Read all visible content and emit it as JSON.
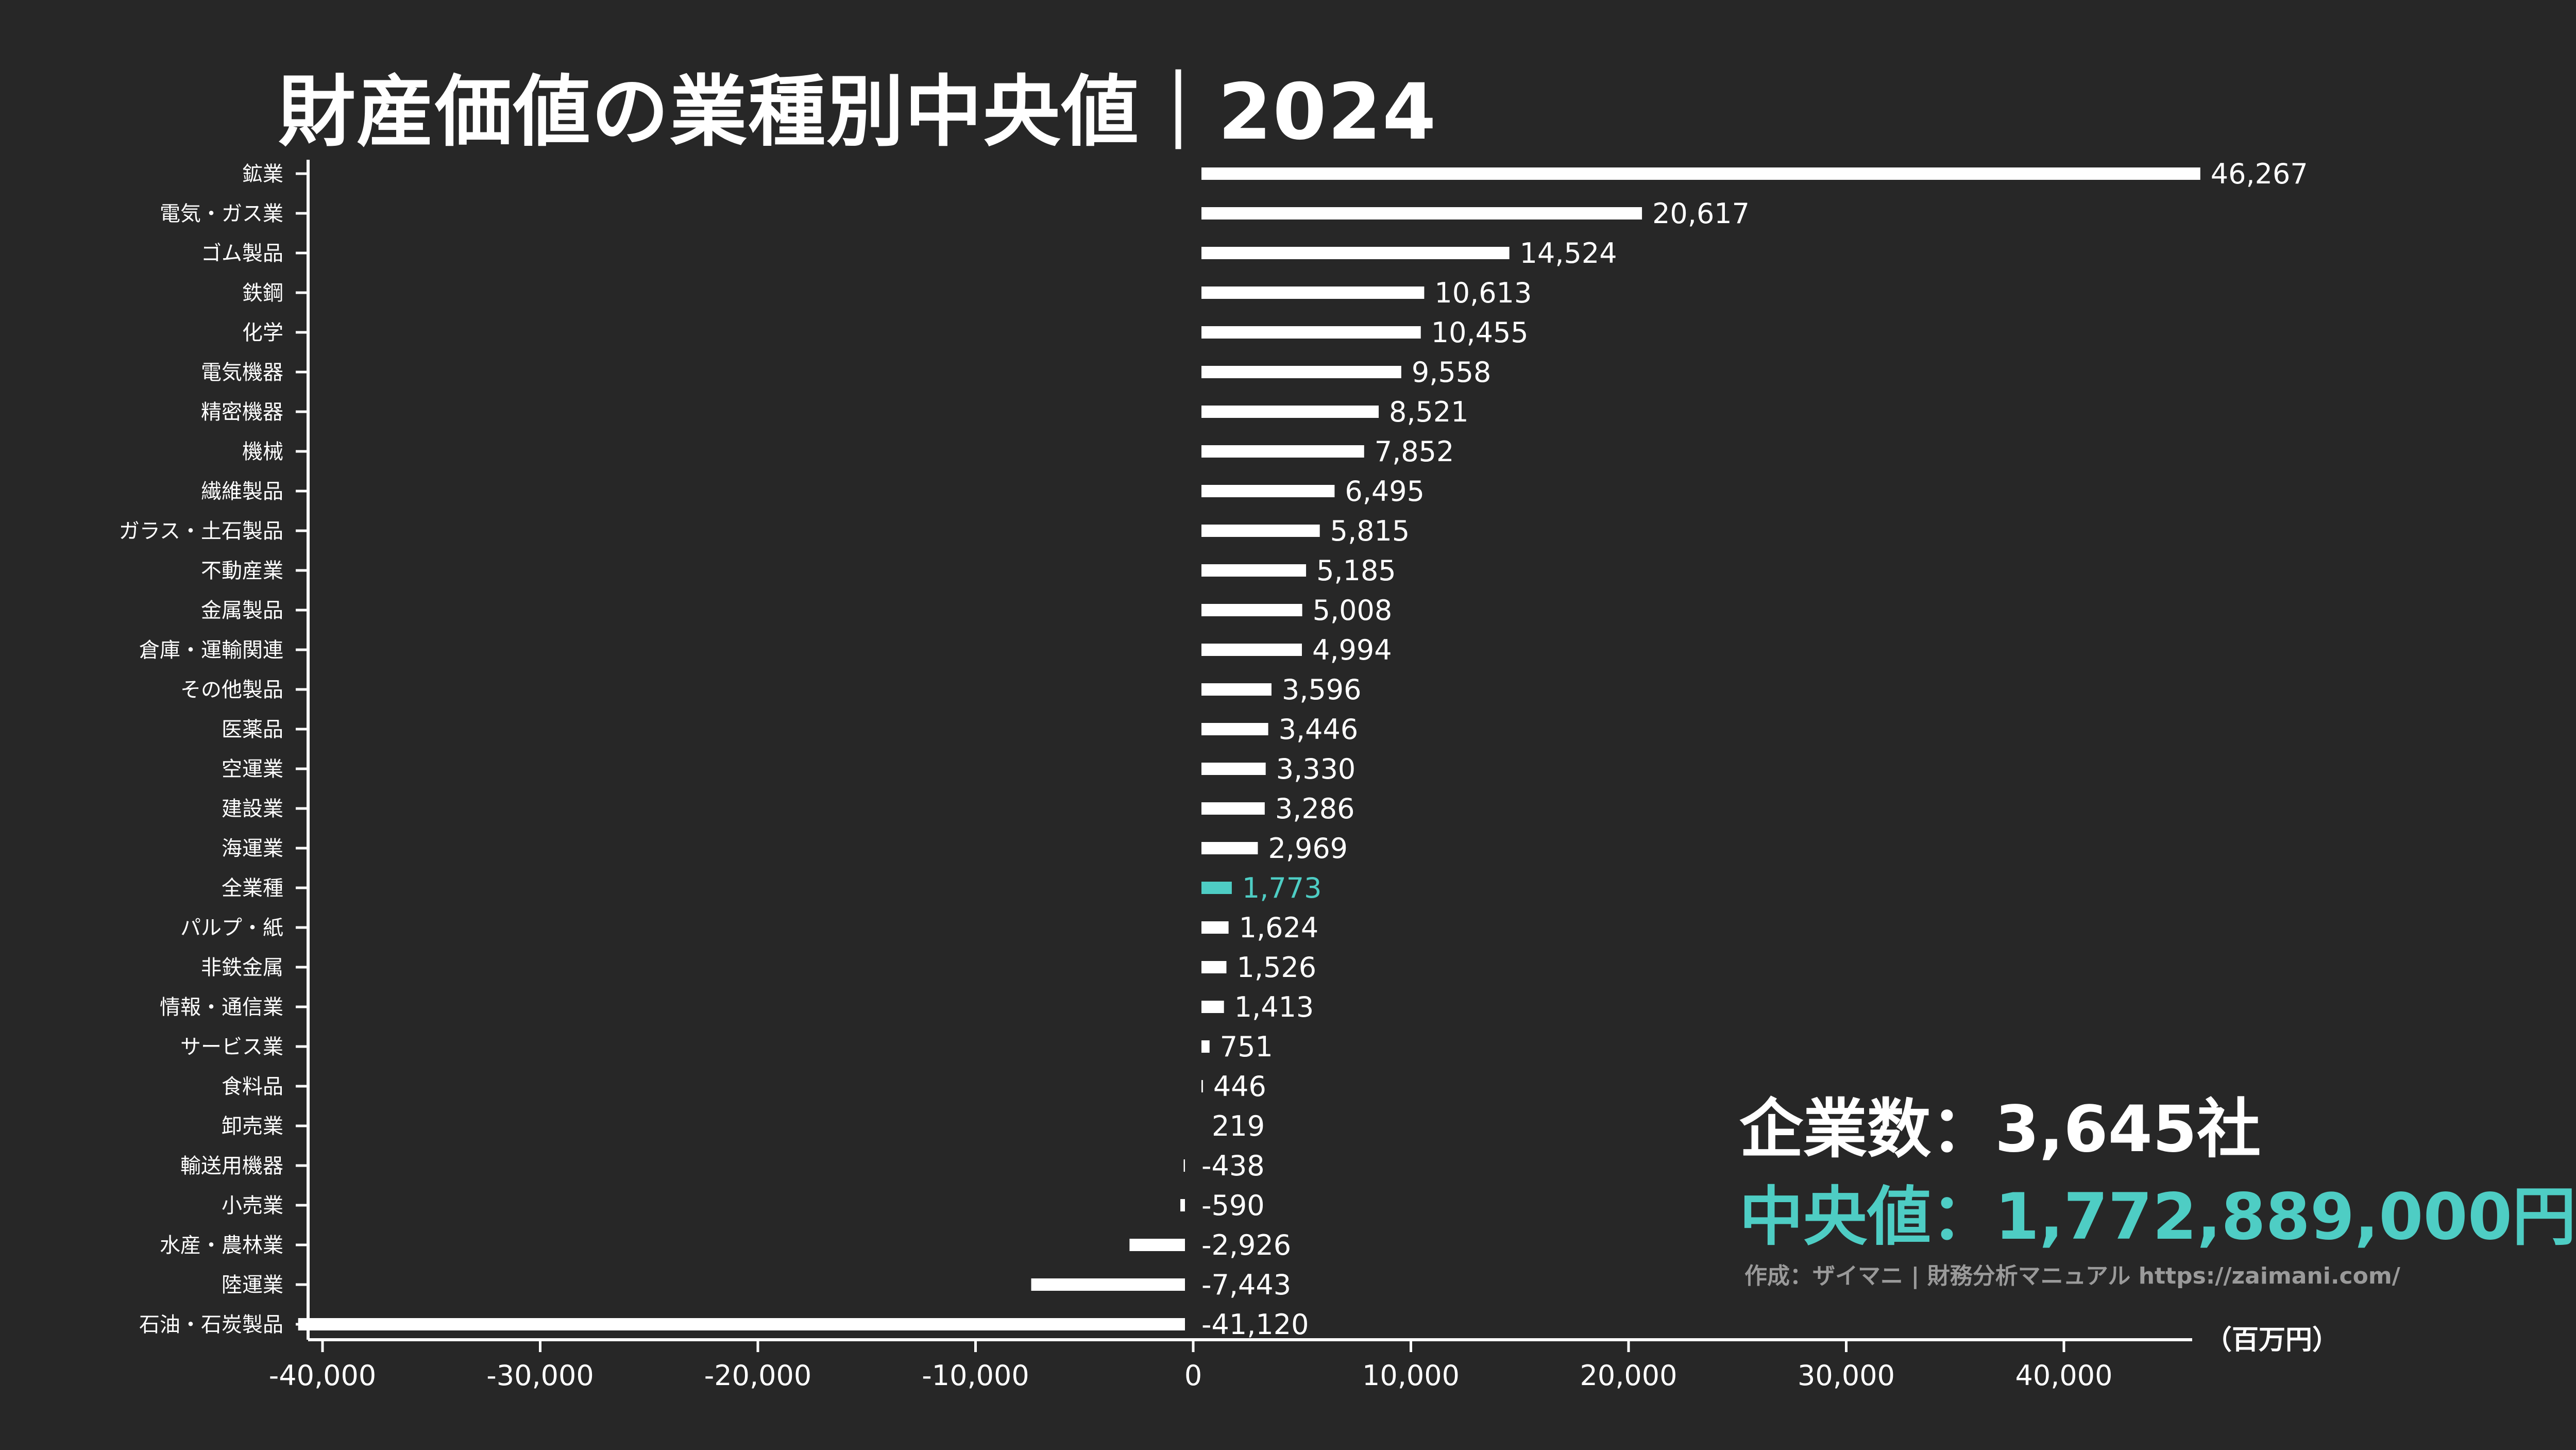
{
  "colors": {
    "background": "#272727",
    "bar": "#ffffff",
    "highlight": "#4ecdc4",
    "credit": "#9a9a9a"
  },
  "title": "財産価値の業種別中央値｜2024",
  "summary": {
    "company_count": "企業数：3,645社",
    "median": "中央値：1,772,889,000円",
    "credit": "作成：ザイマニ | 財務分析マニュアル https://zaimani.com/"
  },
  "chart_data": {
    "type": "bar",
    "orientation": "horizontal",
    "unit": "（百万円）",
    "xlim": [
      -41120,
      46267
    ],
    "ticks": [
      -40000,
      -30000,
      -20000,
      -10000,
      0,
      10000,
      20000,
      30000,
      40000
    ],
    "tick_labels": [
      "-40,000",
      "-30,000",
      "-20,000",
      "-10,000",
      "0",
      "10,000",
      "20,000",
      "30,000",
      "40,000"
    ],
    "highlight": "全業種",
    "categories": [
      "鉱業",
      "電気・ガス業",
      "ゴム製品",
      "鉄鋼",
      "化学",
      "電気機器",
      "精密機器",
      "機械",
      "繊維製品",
      "ガラス・土石製品",
      "不動産業",
      "金属製品",
      "倉庫・運輸関連",
      "その他製品",
      "医薬品",
      "空運業",
      "建設業",
      "海運業",
      "全業種",
      "パルプ・紙",
      "非鉄金属",
      "情報・通信業",
      "サービス業",
      "食料品",
      "卸売業",
      "輸送用機器",
      "小売業",
      "水産・農林業",
      "陸運業",
      "石油・石炭製品"
    ],
    "values": [
      46267,
      20617,
      14524,
      10613,
      10455,
      9558,
      8521,
      7852,
      6495,
      5815,
      5185,
      5008,
      4994,
      3596,
      3446,
      3330,
      3286,
      2969,
      1773,
      1624,
      1526,
      1413,
      751,
      446,
      219,
      -438,
      -590,
      -2926,
      -7443,
      -41120
    ],
    "value_labels": [
      "46,267",
      "20,617",
      "14,524",
      "10,613",
      "10,455",
      "9,558",
      "8,521",
      "7,852",
      "6,495",
      "5,815",
      "5,185",
      "5,008",
      "4,994",
      "3,596",
      "3,446",
      "3,330",
      "3,286",
      "2,969",
      "1,773",
      "1,624",
      "1,526",
      "1,413",
      "751",
      "446",
      "219",
      "-438",
      "-590",
      "-2,926",
      "-7,443",
      "-41,120"
    ]
  }
}
